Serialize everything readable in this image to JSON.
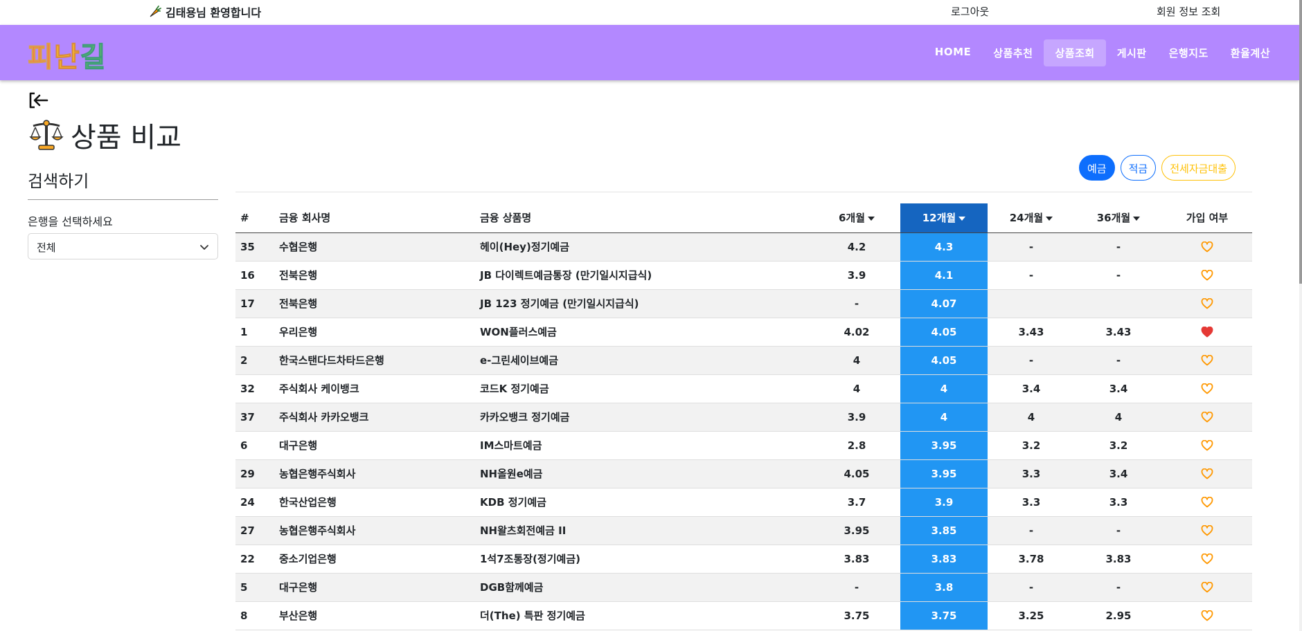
{
  "topbar": {
    "welcome": "김태용님 환영합니다",
    "logout": "로그아웃",
    "member_info": "회원 정보 조회"
  },
  "navbar": {
    "logo_chars": [
      "피",
      "난",
      "길"
    ],
    "logo_colors": [
      "#ff7043",
      "#ffca28",
      "#66bb6a"
    ],
    "items": [
      "HOME",
      "상품추천",
      "상품조회",
      "게시판",
      "은행지도",
      "환율계산"
    ],
    "active_index": 2
  },
  "page": {
    "title": "상품 비교",
    "search_heading": "검색하기",
    "bank_label": "은행을 선택하세요",
    "bank_selected": "전체"
  },
  "filters": {
    "deposit": "예금",
    "savings": "적금",
    "loan": "전세자금대출"
  },
  "table": {
    "headers": [
      "#",
      "금융 회사명",
      "금융 상품명",
      "6개월",
      "12개월",
      "24개월",
      "36개월",
      "가입 여부"
    ],
    "rows": [
      {
        "id": "35",
        "bank": "수협은행",
        "product": "헤이(Hey)정기예금",
        "m6": "4.2",
        "m12": "4.3",
        "m24": "-",
        "m36": "-",
        "joined": false
      },
      {
        "id": "16",
        "bank": "전북은행",
        "product": "JB 다이렉트예금통장 (만기일시지급식)",
        "m6": "3.9",
        "m12": "4.1",
        "m24": "-",
        "m36": "-",
        "joined": false
      },
      {
        "id": "17",
        "bank": "전북은행",
        "product": "JB 123 정기예금 (만기일시지급식)",
        "m6": "-",
        "m12": "4.07",
        "m24": "",
        "m36": "",
        "joined": false
      },
      {
        "id": "1",
        "bank": "우리은행",
        "product": "WON플러스예금",
        "m6": "4.02",
        "m12": "4.05",
        "m24": "3.43",
        "m36": "3.43",
        "joined": true
      },
      {
        "id": "2",
        "bank": "한국스탠다드차타드은행",
        "product": "e-그린세이브예금",
        "m6": "4",
        "m12": "4.05",
        "m24": "-",
        "m36": "-",
        "joined": false
      },
      {
        "id": "32",
        "bank": "주식회사 케이뱅크",
        "product": "코드K 정기예금",
        "m6": "4",
        "m12": "4",
        "m24": "3.4",
        "m36": "3.4",
        "joined": false
      },
      {
        "id": "37",
        "bank": "주식회사 카카오뱅크",
        "product": "카카오뱅크 정기예금",
        "m6": "3.9",
        "m12": "4",
        "m24": "4",
        "m36": "4",
        "joined": false
      },
      {
        "id": "6",
        "bank": "대구은행",
        "product": "IM스마트예금",
        "m6": "2.8",
        "m12": "3.95",
        "m24": "3.2",
        "m36": "3.2",
        "joined": false
      },
      {
        "id": "29",
        "bank": "농협은행주식회사",
        "product": "NH올원e예금",
        "m6": "4.05",
        "m12": "3.95",
        "m24": "3.3",
        "m36": "3.4",
        "joined": false
      },
      {
        "id": "24",
        "bank": "한국산업은행",
        "product": "KDB 정기예금",
        "m6": "3.7",
        "m12": "3.9",
        "m24": "3.3",
        "m36": "3.3",
        "joined": false
      },
      {
        "id": "27",
        "bank": "농협은행주식회사",
        "product": "NH왈츠회전예금 II",
        "m6": "3.95",
        "m12": "3.85",
        "m24": "-",
        "m36": "-",
        "joined": false
      },
      {
        "id": "22",
        "bank": "중소기업은행",
        "product": "1석7조통장(정기예금)",
        "m6": "3.83",
        "m12": "3.83",
        "m24": "3.78",
        "m36": "3.83",
        "joined": false
      },
      {
        "id": "5",
        "bank": "대구은행",
        "product": "DGB함께예금",
        "m6": "-",
        "m12": "3.8",
        "m24": "-",
        "m36": "-",
        "joined": false
      },
      {
        "id": "8",
        "bank": "부산은행",
        "product": "더(The) 특판 정기예금",
        "m6": "3.75",
        "m12": "3.75",
        "m24": "3.25",
        "m36": "2.95",
        "joined": false
      }
    ]
  },
  "colors": {
    "navbar": "#b388ff",
    "sorted_column": "#2196f3",
    "heart_outline": "#ff9800",
    "heart_filled": "#e53935"
  }
}
